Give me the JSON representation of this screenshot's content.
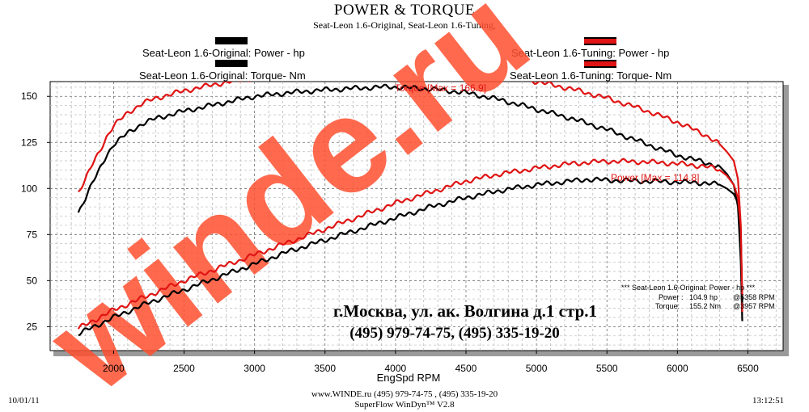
{
  "title": "POWER & TORQUE",
  "subtitle": "Seat-Leon 1.6-Original, Seat-Leon 1.6-Tuning,",
  "legend": {
    "original_power": "Seat-Leon 1.6-Original: Power -  hp",
    "original_torque": "Seat-Leon 1.6-Original: Torque-  Nm",
    "tuning_power": "Seat-Leon 1.6-Tuning: Power -  hp",
    "tuning_torque": "Seat-Leon 1.6-Tuning: Torque-  Nm"
  },
  "colors": {
    "original": "#000000",
    "tuning": "#e01414",
    "watermark": "#ff5030"
  },
  "annotations": {
    "torque_max": "Torque [Max = 166.9]",
    "power_max": "Power  [Max = 114.8]"
  },
  "info_box": {
    "header": "*** Seat-Leon 1.6-Original: Power - hp  ***",
    "power_label": "Power :",
    "power_value": "104.9 hp",
    "power_at": "@5358 RPM",
    "torque_label": "Torque:",
    "torque_value": "155.2 Nm",
    "torque_at": "@3957 RPM"
  },
  "address": {
    "line1": "г.Москва, ул. ак. Волгина д.1 стр.1",
    "line2": "(495) 979-74-75, (495) 335-19-20"
  },
  "watermark": "winde.ru",
  "footer": {
    "date": "10/01/11",
    "web": "www.WINDE.ru  (495) 979-74-75 , (495) 335-19-20",
    "software": "SuperFlow WinDyn™ V2.8",
    "time": "13:12:51"
  },
  "chart_data": {
    "type": "line",
    "title": "POWER & TORQUE",
    "subtitle": "Seat-Leon 1.6-Original, Seat-Leon 1.6-Tuning,",
    "xlabel": "EngSpd  RPM",
    "ylabel": "",
    "xlim": [
      1550,
      6750
    ],
    "ylim": [
      12,
      158
    ],
    "xticks": [
      2000,
      2500,
      3000,
      3500,
      4000,
      4500,
      5000,
      5500,
      6000,
      6500
    ],
    "yticks": [
      25,
      50,
      75,
      100,
      125,
      150
    ],
    "grid": true,
    "series": [
      {
        "name": "Seat-Leon 1.6-Original: Torque-  Nm",
        "color": "#000000",
        "x": [
          1750,
          1800,
          1850,
          1900,
          1950,
          2000,
          2100,
          2200,
          2300,
          2500,
          2750,
          3000,
          3250,
          3500,
          3750,
          3957,
          4250,
          4500,
          4750,
          5000,
          5250,
          5500,
          5750,
          6000,
          6200,
          6300,
          6350,
          6400,
          6430,
          6450,
          6460
        ],
        "y": [
          87,
          95,
          103,
          110,
          118,
          124,
          130,
          135,
          138,
          142,
          146,
          150,
          152,
          153.5,
          154.5,
          155.2,
          154,
          152,
          148,
          143,
          138,
          132,
          125,
          118,
          114,
          112,
          108,
          102,
          90,
          60,
          28
        ]
      },
      {
        "name": "Seat-Leon 1.6-Tuning: Torque-  Nm",
        "color": "#e01414",
        "x": [
          1750,
          1800,
          1850,
          1900,
          1950,
          2000,
          2100,
          2200,
          2300,
          2500,
          2750,
          3000,
          3250,
          3500,
          3750,
          4000,
          4250,
          4500,
          4750,
          5000,
          5250,
          5500,
          5750,
          6000,
          6200,
          6300,
          6350,
          6400,
          6430,
          6450,
          6460
        ],
        "y": [
          98,
          105,
          113,
          120,
          128,
          134,
          141,
          146,
          149,
          153,
          157,
          160,
          162.5,
          164.5,
          166,
          166.9,
          166.5,
          165,
          162,
          158,
          154,
          149,
          143,
          136,
          129,
          124,
          120,
          115,
          105,
          80,
          33
        ]
      },
      {
        "name": "Seat-Leon 1.6-Original: Power -  hp",
        "color": "#000000",
        "x": [
          1750,
          2000,
          2250,
          2500,
          2750,
          3000,
          3250,
          3500,
          3750,
          4000,
          4250,
          4500,
          4750,
          5000,
          5358,
          5500,
          5750,
          6000,
          6200,
          6300,
          6350,
          6400,
          6430,
          6450,
          6460
        ],
        "y": [
          21,
          30,
          38,
          45,
          52,
          59,
          66,
          72,
          78,
          84,
          90,
          95,
          99,
          102,
          104.9,
          104.5,
          104,
          103.5,
          103,
          102,
          100,
          97,
          92,
          75,
          38
        ]
      },
      {
        "name": "Seat-Leon 1.6-Tuning: Power -  hp",
        "color": "#e01414",
        "x": [
          1750,
          2000,
          2250,
          2500,
          2750,
          3000,
          3250,
          3500,
          3750,
          4000,
          4250,
          4500,
          4750,
          5000,
          5250,
          5500,
          5750,
          6000,
          6200,
          6300,
          6350,
          6400,
          6430,
          6450,
          6460
        ],
        "y": [
          24,
          34,
          42,
          50,
          57,
          64,
          71,
          78,
          85,
          92,
          98,
          104,
          108,
          111,
          113.5,
          114.8,
          114.5,
          113.5,
          112,
          110,
          107,
          102,
          95,
          78,
          42
        ]
      }
    ]
  }
}
